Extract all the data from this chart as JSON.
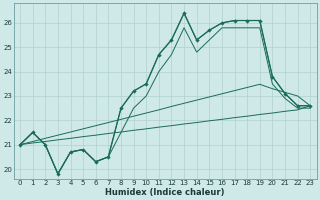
{
  "xlabel": "Humidex (Indice chaleur)",
  "bg_color": "#cfe8e8",
  "line_color": "#1a6b5a",
  "grid_color": "#b0d0d0",
  "xlim": [
    -0.5,
    23.5
  ],
  "ylim": [
    19.6,
    26.8
  ],
  "yticks": [
    20,
    21,
    22,
    23,
    24,
    25,
    26
  ],
  "xticks": [
    0,
    1,
    2,
    3,
    4,
    5,
    6,
    7,
    8,
    9,
    10,
    11,
    12,
    13,
    14,
    15,
    16,
    17,
    18,
    19,
    20,
    21,
    22,
    23
  ],
  "series_main": [
    21.0,
    21.5,
    21.0,
    19.8,
    20.7,
    20.8,
    20.3,
    20.5,
    22.5,
    23.2,
    23.5,
    24.7,
    25.3,
    26.4,
    25.3,
    25.7,
    26.0,
    26.1,
    26.1,
    26.1,
    23.8,
    23.1,
    22.6,
    22.6
  ],
  "series_upper": [
    21.0,
    21.5,
    21.0,
    19.8,
    20.7,
    20.8,
    20.3,
    20.5,
    22.5,
    23.2,
    23.5,
    24.7,
    25.3,
    26.4,
    25.3,
    25.7,
    26.0,
    26.1,
    26.1,
    26.1,
    23.8,
    23.1,
    22.6,
    22.6
  ],
  "series_lower": [
    21.0,
    21.5,
    21.0,
    19.8,
    20.7,
    20.8,
    20.3,
    20.5,
    21.5,
    22.5,
    23.0,
    24.0,
    24.7,
    25.8,
    24.8,
    25.3,
    25.8,
    25.8,
    25.8,
    25.8,
    23.5,
    22.9,
    22.5,
    22.5
  ],
  "series_diag1": [
    21.0,
    21.13,
    21.26,
    21.39,
    21.52,
    21.65,
    21.78,
    21.91,
    22.04,
    22.17,
    22.3,
    22.43,
    22.57,
    22.7,
    22.83,
    22.96,
    23.09,
    23.22,
    23.35,
    23.48,
    23.3,
    23.15,
    23.0,
    22.6
  ],
  "series_diag2": [
    21.0,
    21.07,
    21.13,
    21.2,
    21.26,
    21.33,
    21.39,
    21.46,
    21.52,
    21.59,
    21.65,
    21.72,
    21.78,
    21.85,
    21.91,
    21.98,
    22.04,
    22.11,
    22.17,
    22.24,
    22.3,
    22.37,
    22.43,
    22.6
  ]
}
